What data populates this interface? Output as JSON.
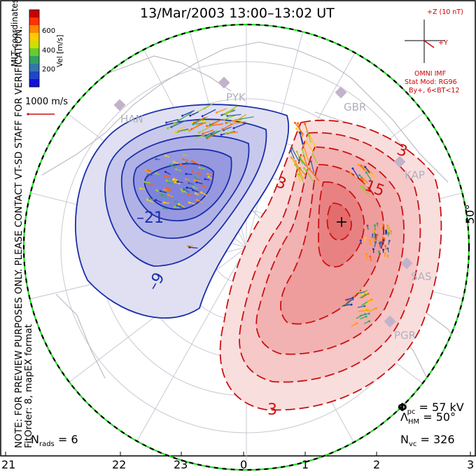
{
  "title": "13/Mar/2003 13:00–13:02 UT",
  "side_note": {
    "line1": "NOTE: FOR PREVIEW PURPOSES ONLY. PLEASE CONTACT VT-SD STAFF FOR VERIFICATION.",
    "line2": "FitOrder: 8, mapEX format"
  },
  "coordinates_label": "MLT coordinates",
  "colorbar": {
    "label": "Vel [m/s]",
    "ticks": [
      "600",
      "400",
      "200"
    ],
    "colors": [
      "#c80000",
      "#ff3300",
      "#ff8800",
      "#ffcc00",
      "#cce000",
      "#66cc33",
      "#33a066",
      "#3377aa",
      "#2244cc",
      "#1111dd"
    ]
  },
  "vector_scale": "1000 m/s",
  "imf": {
    "z_label": "+Z (10 nT)",
    "y_label": "+Y",
    "source": "OMNI IMF",
    "model": "Stat Mod: RG96",
    "condition": "By+, 6<BT<12"
  },
  "radars": [
    "HAN",
    "PYK",
    "GBR",
    "KAP",
    "SAS",
    "PGR"
  ],
  "contour_labels": {
    "neg_outer": "–9",
    "neg_inner": "–21",
    "pos_upper": "3",
    "pos_lower": "3",
    "pos_left": "3",
    "pos_mid": "15"
  },
  "latitude_label": "50°",
  "stats": {
    "phi_pc": "57 kV",
    "lambda_hm": "50°",
    "n_vc": "326",
    "n_rads": "6"
  },
  "mlt_ticks": [
    "21",
    "22",
    "23",
    "0",
    "1",
    "2",
    "3"
  ],
  "colors": {
    "negative_contour": "#1a2eaa",
    "positive_contour": "#cc1111",
    "land_outline": "#b8b8c0",
    "boundary": "#22dd22"
  }
}
